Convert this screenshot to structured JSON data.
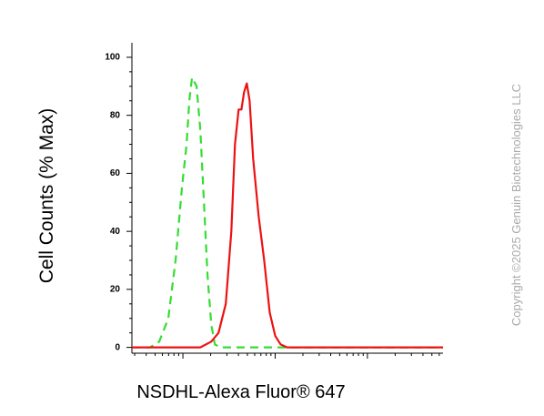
{
  "chart_data": {
    "type": "line",
    "y_label": "Cell Counts (% Max)",
    "x_label": "NSDHL-Alexa Fluor® 647",
    "watermark": "Copyright ©2025 Genuin Biotechnologies LLC",
    "x_log": true,
    "xlim": [
      280,
      660000
    ],
    "ylim": [
      -2,
      105
    ],
    "yticks": [
      0,
      20,
      40,
      60,
      80,
      100
    ],
    "series": [
      {
        "color": "#33dd33",
        "dashed": true,
        "x": [
          280,
          441,
          553,
          695,
          833,
          977,
          1096,
          1173,
          1256,
          1408,
          1543,
          1690,
          1849,
          2027,
          2222,
          2549,
          9550,
          660000
        ],
        "values": [
          0,
          0,
          2,
          10,
          30,
          55,
          70,
          85,
          93,
          90,
          75,
          50,
          25,
          8,
          1,
          0,
          0,
          0
        ]
      },
      {
        "color": "#ee1111",
        "dashed": false,
        "x": [
          280,
          1543,
          2027,
          2432,
          2917,
          3350,
          3664,
          4018,
          4305,
          4603,
          4932,
          5284,
          5781,
          6634,
          7603,
          8730,
          10000,
          11460,
          13460,
          660000
        ],
        "values": [
          0,
          0,
          2,
          5,
          15,
          40,
          70,
          82,
          82,
          88,
          91,
          85,
          65,
          45,
          30,
          12,
          4,
          1,
          0,
          0
        ]
      }
    ]
  }
}
